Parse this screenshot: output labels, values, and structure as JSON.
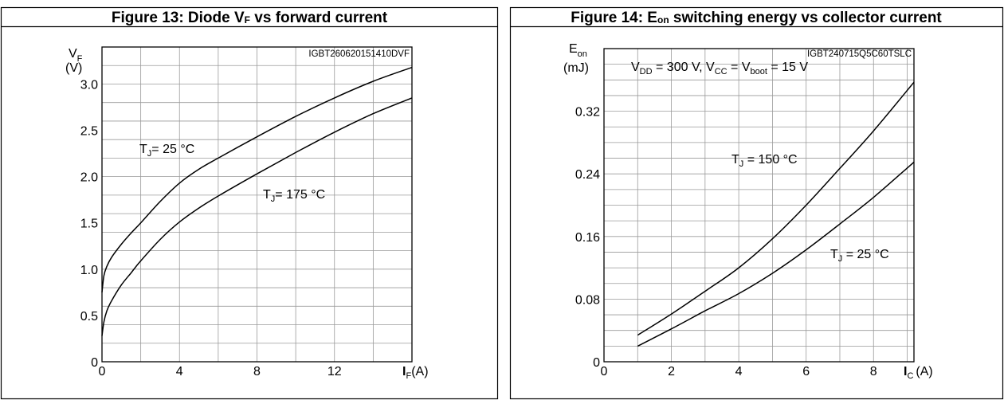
{
  "chart_data": [
    {
      "type": "line",
      "title": "Figure 13: Diode V",
      "title_sub": "F",
      "title_rest": " vs forward current",
      "code": "IGBT260620151410DVF",
      "ylabel": "V",
      "ylabel_sub": "F",
      "ylabel_unit": "(V)",
      "xlabel": "I",
      "xlabel_sub": "F",
      "xlabel_unit": "(A)",
      "xlim": [
        0,
        16
      ],
      "ylim": [
        0,
        3.4
      ],
      "xticks": [
        "0",
        "4",
        "8",
        "12"
      ],
      "yticks": [
        "0",
        "0.5",
        "1.0",
        "1.5",
        "2.0",
        "2.5",
        "3.0"
      ],
      "grid": true,
      "series": [
        {
          "name_pre": "T",
          "name_sub": "J",
          "name_post": "= 25 °C",
          "x": [
            0,
            0.1,
            0.25,
            0.5,
            1,
            1.5,
            2,
            3,
            4,
            5,
            6,
            8,
            10,
            12,
            14,
            16
          ],
          "y": [
            0.75,
            0.93,
            1.03,
            1.13,
            1.27,
            1.39,
            1.5,
            1.73,
            1.93,
            2.08,
            2.2,
            2.43,
            2.65,
            2.85,
            3.03,
            3.18
          ]
        },
        {
          "name_pre": "T",
          "name_sub": "J",
          "name_post": "= 175 °C",
          "x": [
            0,
            0.1,
            0.25,
            0.5,
            1,
            1.5,
            2,
            3,
            4,
            5,
            6,
            8,
            10,
            12,
            14,
            16
          ],
          "y": [
            0.28,
            0.43,
            0.55,
            0.66,
            0.83,
            0.96,
            1.09,
            1.32,
            1.51,
            1.66,
            1.79,
            2.03,
            2.26,
            2.48,
            2.68,
            2.85
          ]
        }
      ]
    },
    {
      "type": "line",
      "title": "Figure 14: E",
      "title_sub": "on",
      "title_rest": " switching energy vs collector current",
      "code": "IGBT240715Q5C60TSLC",
      "ylabel": "E",
      "ylabel_sub": "on",
      "ylabel_unit": "(mJ)",
      "xlabel": "I",
      "xlabel_sub": "C",
      "xlabel_unit": "(A)",
      "xlim": [
        0,
        9.2
      ],
      "ylim": [
        0,
        0.4
      ],
      "xticks": [
        "0",
        "2",
        "4",
        "6",
        "8"
      ],
      "yticks": [
        "0",
        "0.08",
        "0.16",
        "0.24",
        "0.32"
      ],
      "grid": true,
      "conditions": {
        "t1": "V",
        "s1": "DD",
        "t2": " = 300 V, V",
        "s2": "CC",
        "t3": " = V",
        "s3": "boot",
        "t4": " = 15 V"
      },
      "series": [
        {
          "name_pre": "T",
          "name_sub": "J",
          "name_post": " = 150 °C",
          "x": [
            1,
            2,
            3,
            4,
            5,
            6,
            7,
            8,
            9.2
          ],
          "y": [
            0.034,
            0.061,
            0.09,
            0.12,
            0.157,
            0.2,
            0.247,
            0.295,
            0.357
          ]
        },
        {
          "name_pre": "T",
          "name_sub": "J",
          "name_post": " = 25 °C",
          "x": [
            1,
            2,
            3,
            4,
            5,
            6,
            7,
            8,
            9.2
          ],
          "y": [
            0.02,
            0.042,
            0.065,
            0.087,
            0.113,
            0.143,
            0.176,
            0.21,
            0.255
          ]
        }
      ]
    }
  ]
}
